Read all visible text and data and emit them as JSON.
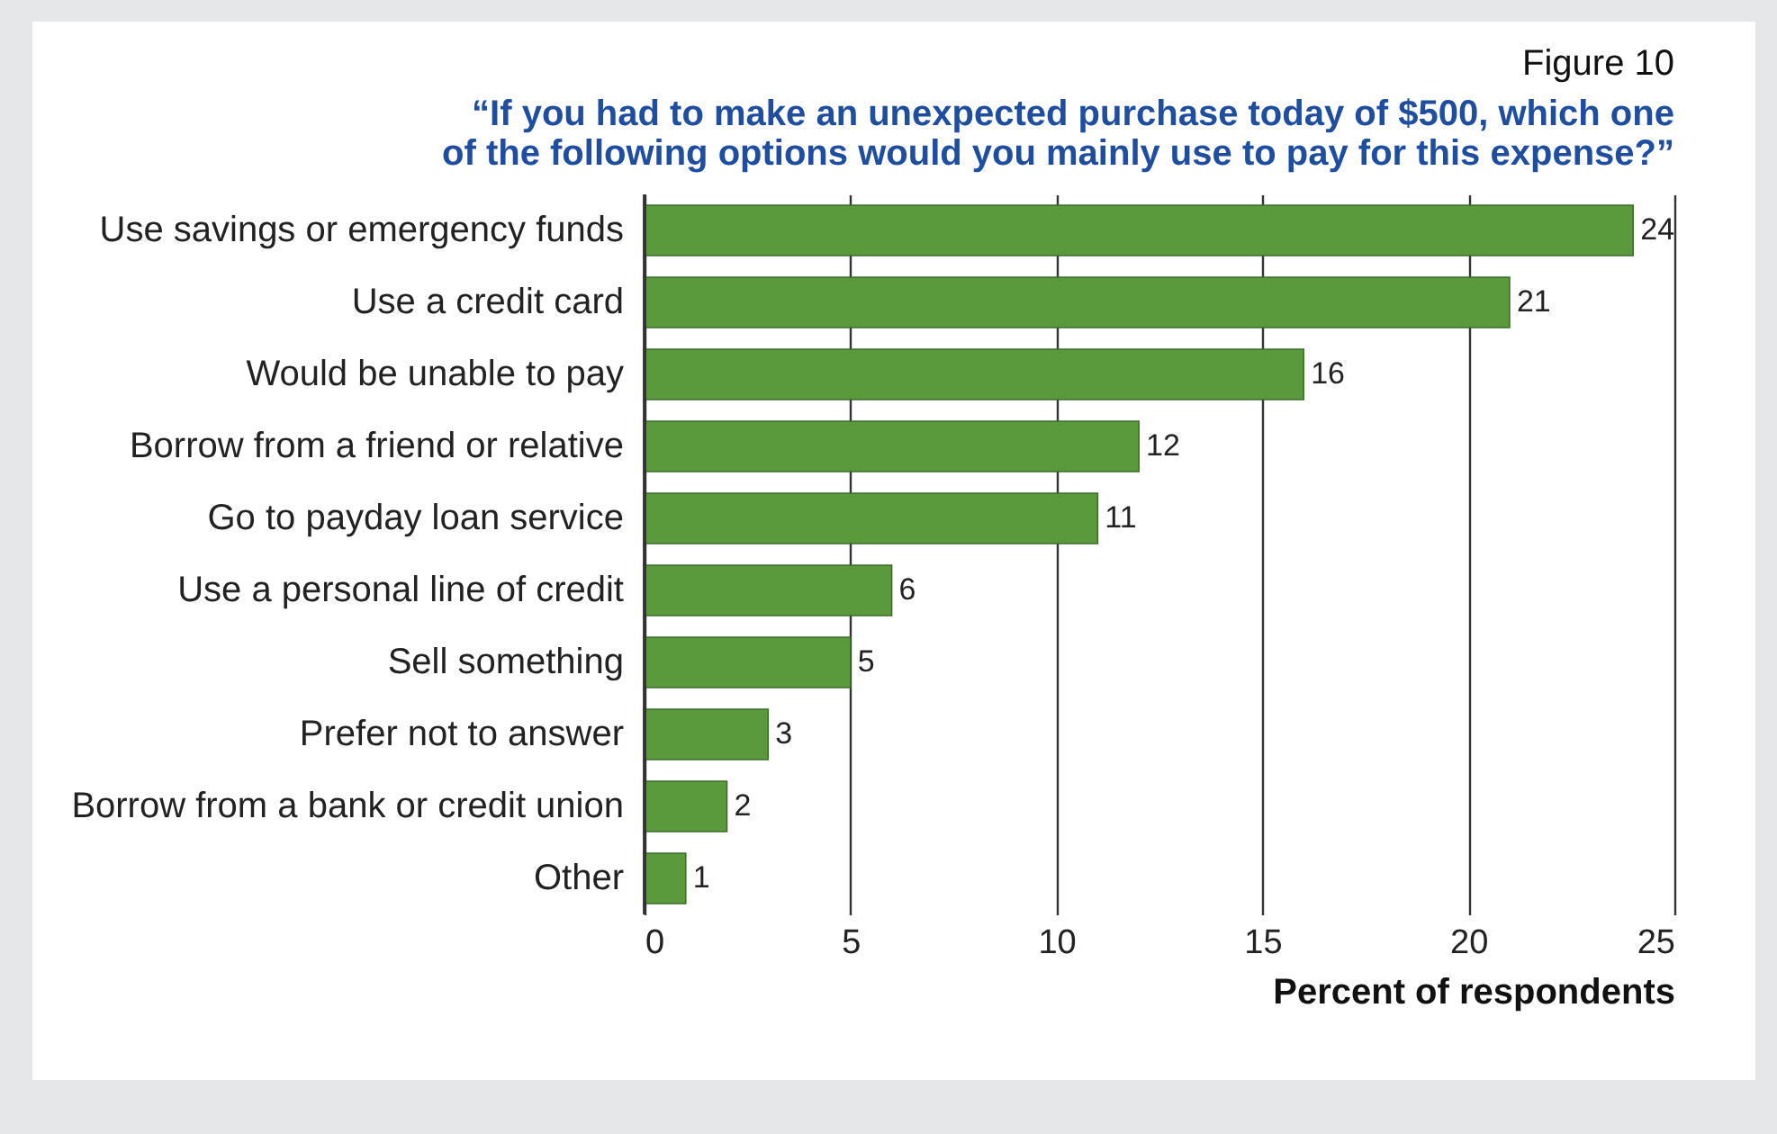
{
  "chart_data": {
    "type": "bar",
    "orientation": "horizontal",
    "title": "Figure 10",
    "subtitle": "“If you had to make an unexpected purchase today of $500, which one\nof the following options would you mainly use to pay for this expense?”",
    "xlabel": "Percent of respondents",
    "categories": [
      "Use savings or emergency funds",
      "Use a credit card",
      "Would be unable to pay",
      "Borrow from a friend or relative",
      "Go to payday loan service",
      "Use a personal line of credit",
      "Sell something",
      "Prefer not to answer",
      "Borrow from a bank or credit union",
      "Other"
    ],
    "values": [
      24,
      21,
      16,
      12,
      11,
      6,
      5,
      3,
      2,
      1
    ],
    "color": "#5b9a3c",
    "xlim": [
      0,
      25
    ],
    "xticks": [
      0,
      5,
      10,
      15,
      20,
      25
    ],
    "grid": "x",
    "data_labels": true
  }
}
